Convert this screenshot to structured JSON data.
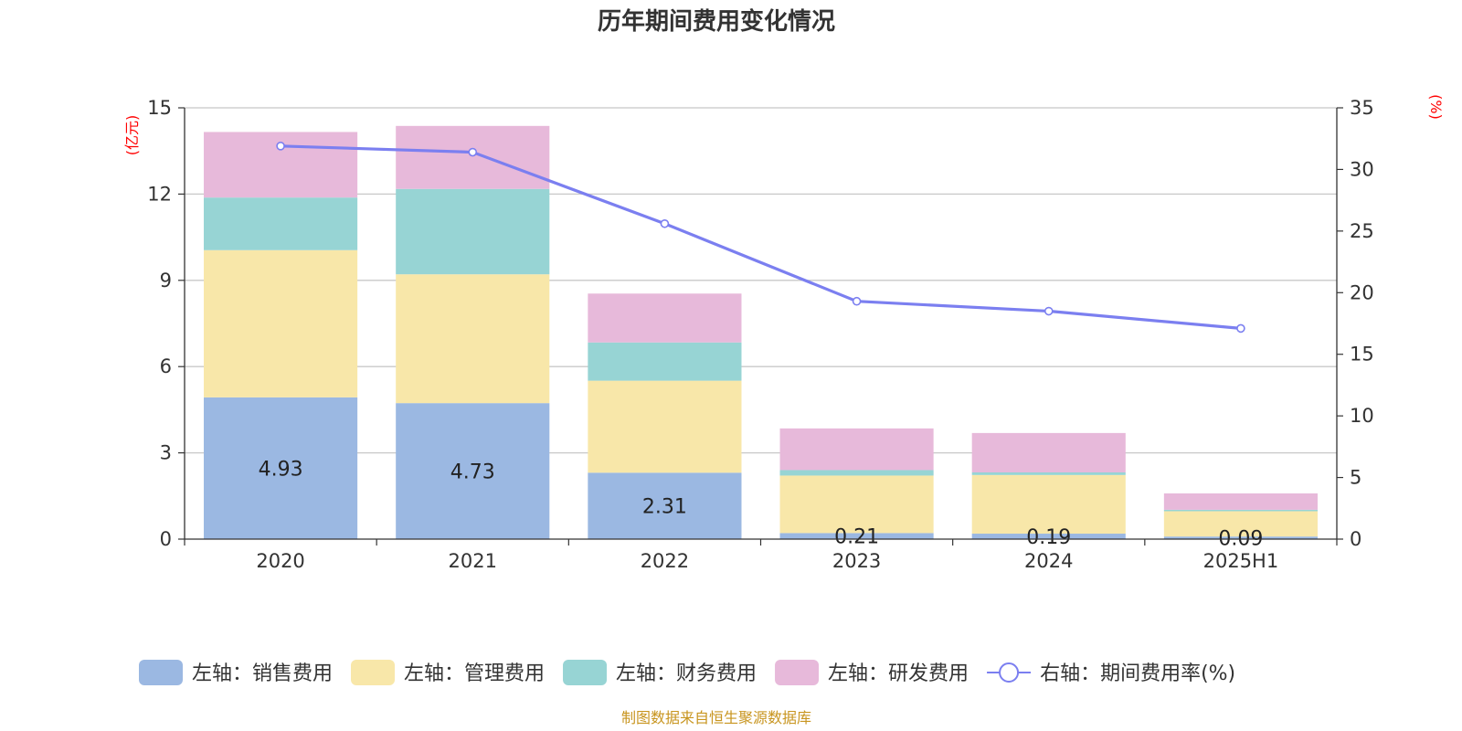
{
  "chart_data": {
    "type": "bar",
    "title": "历年期间费用变化情况",
    "categories": [
      "2020",
      "2021",
      "2022",
      "2023",
      "2024",
      "2025H1"
    ],
    "left_axis": {
      "unit_label": "(亿元)",
      "ylim": [
        0,
        15
      ],
      "ticks": [
        "0",
        "3",
        "6",
        "9",
        "12",
        "15"
      ]
    },
    "right_axis": {
      "unit_label": "(%)",
      "ylim": [
        0,
        35
      ],
      "ticks": [
        "0",
        "5",
        "10",
        "15",
        "20",
        "25",
        "30",
        "35"
      ]
    },
    "series": [
      {
        "name": "左轴：销售费用",
        "kind": "bar",
        "stack": "total",
        "color": "#9bb8e2",
        "values": [
          4.93,
          4.73,
          2.31,
          0.21,
          0.19,
          0.09
        ],
        "labels": [
          "4.93",
          "4.73",
          "2.31",
          "0.21",
          "0.19",
          "0.09"
        ]
      },
      {
        "name": "左轴：管理费用",
        "kind": "bar",
        "stack": "total",
        "color": "#f8e7a9",
        "values": [
          5.12,
          4.48,
          3.2,
          2.0,
          2.04,
          0.88
        ]
      },
      {
        "name": "左轴：财务费用",
        "kind": "bar",
        "stack": "total",
        "color": "#97d4d4",
        "values": [
          1.83,
          2.97,
          1.33,
          0.19,
          0.09,
          0.05
        ]
      },
      {
        "name": "左轴：研发费用",
        "kind": "bar",
        "stack": "total",
        "color": "#e7b9da",
        "values": [
          2.28,
          2.19,
          1.7,
          1.45,
          1.37,
          0.57
        ]
      },
      {
        "name": "右轴：期间费用率(%)",
        "kind": "line",
        "axis": "right",
        "color": "#7b7ff0",
        "values": [
          31.9,
          31.4,
          25.6,
          19.3,
          18.5,
          17.1
        ]
      }
    ],
    "grid": true,
    "legend_position": "bottom"
  },
  "source": "制图数据来自恒生聚源数据库"
}
